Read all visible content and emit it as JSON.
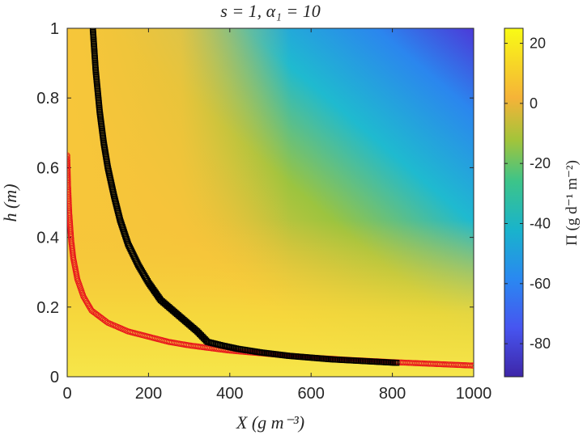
{
  "chart_data": {
    "type": "scatter",
    "title": "s = 1, α₁ = 10",
    "xlabel": "X (g m⁻³)",
    "ylabel": "h (m)",
    "xlim": [
      0,
      1000
    ],
    "ylim": [
      0,
      1
    ],
    "x_ticks": [
      "0",
      "200",
      "400",
      "600",
      "800",
      "1000"
    ],
    "y_ticks": [
      "0",
      "0.2",
      "0.4",
      "0.6",
      "0.8",
      "1"
    ],
    "grid": false,
    "background": {
      "type": "heatmap",
      "colormap": "parula",
      "note_values": "Π field over (X, h)"
    },
    "colorbar": {
      "label": "Π (g d⁻¹ m⁻²)",
      "range": [
        -91,
        25
      ],
      "ticks": [
        "20",
        "0",
        "-20",
        "-40",
        "-60",
        "-80"
      ]
    },
    "series": [
      {
        "color": "#e8141c",
        "marker": "circle",
        "x": [
          0,
          2,
          5,
          10,
          15,
          25,
          40,
          60,
          100,
          150,
          200,
          250,
          300,
          400,
          500,
          600,
          700,
          800,
          900,
          1000
        ],
        "y": [
          0.635,
          0.55,
          0.47,
          0.39,
          0.34,
          0.28,
          0.23,
          0.19,
          0.155,
          0.13,
          0.115,
          0.1,
          0.09,
          0.075,
          0.065,
          0.055,
          0.048,
          0.042,
          0.037,
          0.032
        ]
      },
      {
        "color": "#000000",
        "marker": "square",
        "x": [
          63,
          70,
          80,
          90,
          100,
          115,
          130,
          150,
          175,
          200,
          230,
          260,
          290,
          320,
          345,
          380,
          420,
          475,
          545,
          650,
          810
        ],
        "y": [
          1.0,
          0.88,
          0.76,
          0.67,
          0.6,
          0.52,
          0.45,
          0.38,
          0.32,
          0.27,
          0.22,
          0.19,
          0.16,
          0.13,
          0.1,
          0.09,
          0.08,
          0.07,
          0.06,
          0.05,
          0.04
        ]
      }
    ]
  }
}
